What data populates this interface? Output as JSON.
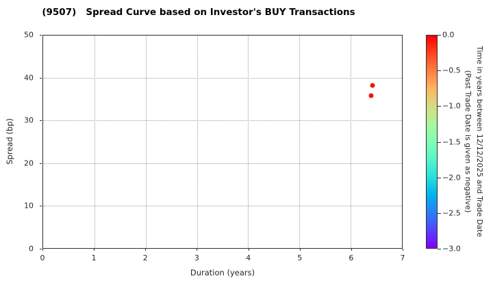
{
  "chart_data": {
    "type": "scatter",
    "title": "(9507)   Spread Curve based on Investor's BUY Transactions",
    "xlabel": "Duration (years)",
    "ylabel": "Spread (bp)",
    "xlim": [
      0,
      7
    ],
    "ylim": [
      0,
      50
    ],
    "xticks": [
      0,
      1,
      2,
      3,
      4,
      5,
      6,
      7
    ],
    "yticks": [
      0,
      10,
      20,
      30,
      40,
      50
    ],
    "grid": true,
    "grid_style": "dotted",
    "marker_color": "#f41010",
    "points": [
      {
        "x": 6.42,
        "y": 38.2,
        "time_value": 0.0
      },
      {
        "x": 6.4,
        "y": 35.9,
        "time_value": 0.0
      }
    ],
    "colorbar": {
      "label_line1": "Time in years between 12/12/2025 and Trade Date",
      "label_line2": "(Past Trade Date is given as negative)",
      "tick_labels": [
        "0.0",
        "−0.5",
        "−1.0",
        "−1.5",
        "−2.0",
        "−2.5",
        "−3.0"
      ],
      "range": [
        0.0,
        -3.0
      ],
      "colormap": "rainbow",
      "gradient_stops": [
        "#ff0000",
        "#ff4221",
        "#ff7f42",
        "#ffb462",
        "#d4dd7f",
        "#aaf69b",
        "#80ffb4",
        "#55f6ca",
        "#2adddd",
        "#00b4ec",
        "#2a7ff6",
        "#5542fd",
        "#8000ff"
      ]
    }
  }
}
